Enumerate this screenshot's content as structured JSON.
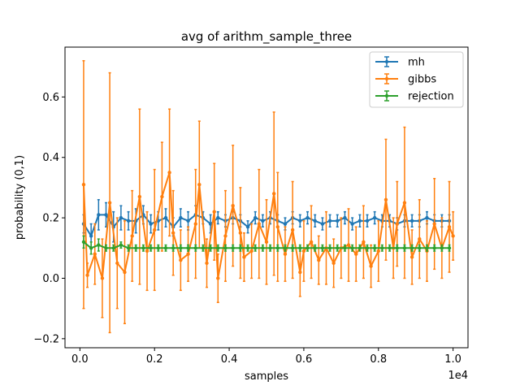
{
  "chart_data": {
    "type": "line",
    "title": "avg of arithm_sample_three",
    "xlabel": "samples",
    "ylabel": "probability (0,1)",
    "x_offset_text": "1e4",
    "xlim": [
      -0.04,
      1.04
    ],
    "ylim": [
      -0.23,
      0.765
    ],
    "x_ticks": [
      0.0,
      0.2,
      0.4,
      0.6,
      0.8,
      1.0
    ],
    "x_tick_labels": [
      "0.0",
      "0.2",
      "0.4",
      "0.6",
      "0.8",
      "1.0"
    ],
    "y_ticks": [
      -0.2,
      0.0,
      0.2,
      0.4,
      0.6
    ],
    "y_tick_labels": [
      "−0.2",
      "0.0",
      "0.2",
      "0.4",
      "0.6"
    ],
    "legend_position": "top-right",
    "series": [
      {
        "name": "mh",
        "color": "#1f77b4",
        "x": [
          0.01,
          0.03,
          0.05,
          0.07,
          0.09,
          0.11,
          0.13,
          0.15,
          0.17,
          0.19,
          0.21,
          0.23,
          0.25,
          0.27,
          0.29,
          0.31,
          0.33,
          0.35,
          0.37,
          0.39,
          0.41,
          0.43,
          0.45,
          0.47,
          0.49,
          0.51,
          0.53,
          0.55,
          0.57,
          0.59,
          0.61,
          0.63,
          0.65,
          0.67,
          0.69,
          0.71,
          0.73,
          0.75,
          0.77,
          0.79,
          0.81,
          0.83,
          0.85,
          0.87,
          0.89,
          0.91,
          0.93,
          0.95,
          0.97,
          0.99
        ],
        "y": [
          0.18,
          0.14,
          0.21,
          0.21,
          0.17,
          0.2,
          0.19,
          0.19,
          0.21,
          0.18,
          0.19,
          0.2,
          0.17,
          0.2,
          0.19,
          0.21,
          0.2,
          0.18,
          0.2,
          0.19,
          0.2,
          0.19,
          0.17,
          0.2,
          0.19,
          0.2,
          0.19,
          0.18,
          0.2,
          0.19,
          0.2,
          0.19,
          0.18,
          0.19,
          0.19,
          0.2,
          0.18,
          0.19,
          0.19,
          0.2,
          0.19,
          0.19,
          0.18,
          0.19,
          0.19,
          0.19,
          0.2,
          0.19,
          0.19,
          0.19
        ],
        "err": [
          0.03,
          0.04,
          0.05,
          0.04,
          0.05,
          0.04,
          0.03,
          0.04,
          0.03,
          0.03,
          0.03,
          0.03,
          0.03,
          0.03,
          0.03,
          0.03,
          0.02,
          0.03,
          0.02,
          0.02,
          0.02,
          0.02,
          0.02,
          0.02,
          0.02,
          0.02,
          0.02,
          0.02,
          0.02,
          0.02,
          0.02,
          0.02,
          0.02,
          0.02,
          0.02,
          0.02,
          0.02,
          0.02,
          0.02,
          0.02,
          0.02,
          0.02,
          0.02,
          0.02,
          0.02,
          0.02,
          0.02,
          0.02,
          0.02,
          0.02
        ]
      },
      {
        "name": "gibbs",
        "color": "#ff7f0e",
        "x": [
          0.01,
          0.02,
          0.04,
          0.06,
          0.08,
          0.1,
          0.12,
          0.14,
          0.16,
          0.18,
          0.2,
          0.22,
          0.24,
          0.25,
          0.27,
          0.29,
          0.31,
          0.32,
          0.34,
          0.36,
          0.37,
          0.39,
          0.41,
          0.43,
          0.44,
          0.46,
          0.48,
          0.5,
          0.52,
          0.53,
          0.55,
          0.57,
          0.59,
          0.6,
          0.62,
          0.64,
          0.66,
          0.68,
          0.7,
          0.72,
          0.74,
          0.76,
          0.78,
          0.8,
          0.82,
          0.84,
          0.85,
          0.87,
          0.89,
          0.91,
          0.93,
          0.95,
          0.97,
          0.99,
          1.0
        ],
        "y": [
          0.31,
          0.01,
          0.08,
          0.0,
          0.25,
          0.05,
          0.02,
          0.14,
          0.27,
          0.09,
          0.16,
          0.27,
          0.35,
          0.15,
          0.06,
          0.08,
          0.18,
          0.31,
          0.05,
          0.22,
          0.0,
          0.14,
          0.24,
          0.15,
          0.07,
          0.09,
          0.18,
          0.12,
          0.28,
          0.17,
          0.08,
          0.16,
          0.02,
          0.09,
          0.12,
          0.06,
          0.1,
          0.05,
          0.1,
          0.11,
          0.08,
          0.12,
          0.04,
          0.09,
          0.26,
          0.1,
          0.18,
          0.25,
          0.07,
          0.13,
          0.09,
          0.18,
          0.1,
          0.17,
          0.14
        ],
        "err": [
          0.41,
          0.04,
          0.1,
          0.13,
          0.43,
          0.15,
          0.17,
          0.15,
          0.29,
          0.13,
          0.2,
          0.18,
          0.21,
          0.14,
          0.1,
          0.09,
          0.18,
          0.21,
          0.08,
          0.16,
          0.08,
          0.15,
          0.2,
          0.15,
          0.08,
          0.09,
          0.18,
          0.14,
          0.27,
          0.18,
          0.09,
          0.16,
          0.08,
          0.1,
          0.12,
          0.08,
          0.12,
          0.08,
          0.1,
          0.12,
          0.09,
          0.12,
          0.07,
          0.1,
          0.2,
          0.1,
          0.14,
          0.25,
          0.09,
          0.13,
          0.1,
          0.15,
          0.1,
          0.15,
          0.08
        ]
      },
      {
        "name": "rejection",
        "color": "#2ca02c",
        "x": [
          0.01,
          0.03,
          0.05,
          0.07,
          0.09,
          0.11,
          0.13,
          0.15,
          0.17,
          0.19,
          0.21,
          0.23,
          0.25,
          0.27,
          0.29,
          0.31,
          0.33,
          0.35,
          0.37,
          0.39,
          0.41,
          0.43,
          0.45,
          0.47,
          0.49,
          0.51,
          0.53,
          0.55,
          0.57,
          0.59,
          0.61,
          0.63,
          0.65,
          0.67,
          0.69,
          0.71,
          0.73,
          0.75,
          0.77,
          0.79,
          0.81,
          0.83,
          0.85,
          0.87,
          0.89,
          0.91,
          0.93,
          0.95,
          0.97,
          0.99
        ],
        "y": [
          0.12,
          0.1,
          0.11,
          0.1,
          0.1,
          0.11,
          0.1,
          0.1,
          0.1,
          0.1,
          0.1,
          0.1,
          0.1,
          0.1,
          0.1,
          0.1,
          0.1,
          0.1,
          0.1,
          0.1,
          0.1,
          0.1,
          0.1,
          0.1,
          0.1,
          0.1,
          0.1,
          0.1,
          0.1,
          0.1,
          0.1,
          0.1,
          0.1,
          0.1,
          0.1,
          0.1,
          0.1,
          0.1,
          0.1,
          0.1,
          0.1,
          0.1,
          0.1,
          0.1,
          0.1,
          0.1,
          0.1,
          0.1,
          0.1,
          0.1
        ],
        "err": [
          0.02,
          0.02,
          0.02,
          0.01,
          0.01,
          0.01,
          0.01,
          0.01,
          0.01,
          0.01,
          0.01,
          0.01,
          0.01,
          0.01,
          0.01,
          0.01,
          0.01,
          0.01,
          0.01,
          0.01,
          0.01,
          0.01,
          0.01,
          0.01,
          0.01,
          0.01,
          0.01,
          0.01,
          0.01,
          0.01,
          0.01,
          0.01,
          0.01,
          0.01,
          0.01,
          0.01,
          0.01,
          0.01,
          0.01,
          0.01,
          0.01,
          0.01,
          0.01,
          0.01,
          0.01,
          0.01,
          0.01,
          0.01,
          0.01,
          0.01
        ]
      }
    ]
  }
}
